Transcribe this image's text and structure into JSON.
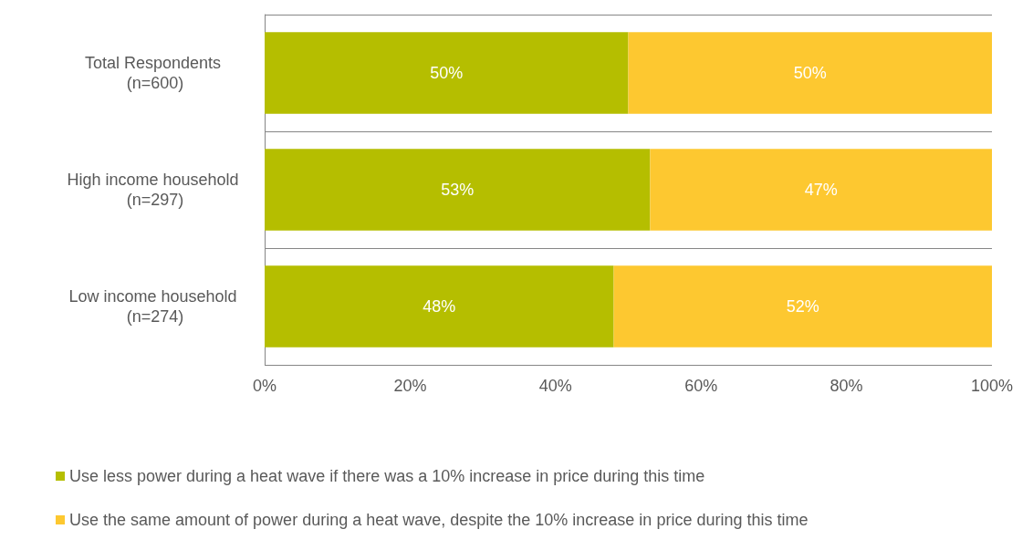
{
  "chart_data": {
    "type": "bar",
    "orientation": "horizontal",
    "stacked": true,
    "categories": [
      "Total Respondents (n=600)",
      "High income household (n=297)",
      "Low income household (n=274)"
    ],
    "series": [
      {
        "name": "Use less power during a heat wave if there was a 10% increase in price during this time",
        "color": "#b5be00",
        "values": [
          50,
          53,
          48
        ],
        "value_labels": [
          "50%",
          "53%",
          "48%"
        ]
      },
      {
        "name": "Use the same amount of power during a heat wave, despite the 10% increase in price during this time",
        "color": "#fdc830",
        "values": [
          50,
          47,
          52
        ],
        "value_labels": [
          "50%",
          "47%",
          "52%"
        ]
      }
    ],
    "xlim": [
      0,
      100
    ],
    "xticks": [
      {
        "value": 0,
        "label": "0%"
      },
      {
        "value": 20,
        "label": "20%"
      },
      {
        "value": 40,
        "label": "40%"
      },
      {
        "value": 60,
        "label": "60%"
      },
      {
        "value": 80,
        "label": "80%"
      },
      {
        "value": 100,
        "label": "100%"
      }
    ],
    "grid": "y",
    "legend": "bottom"
  }
}
